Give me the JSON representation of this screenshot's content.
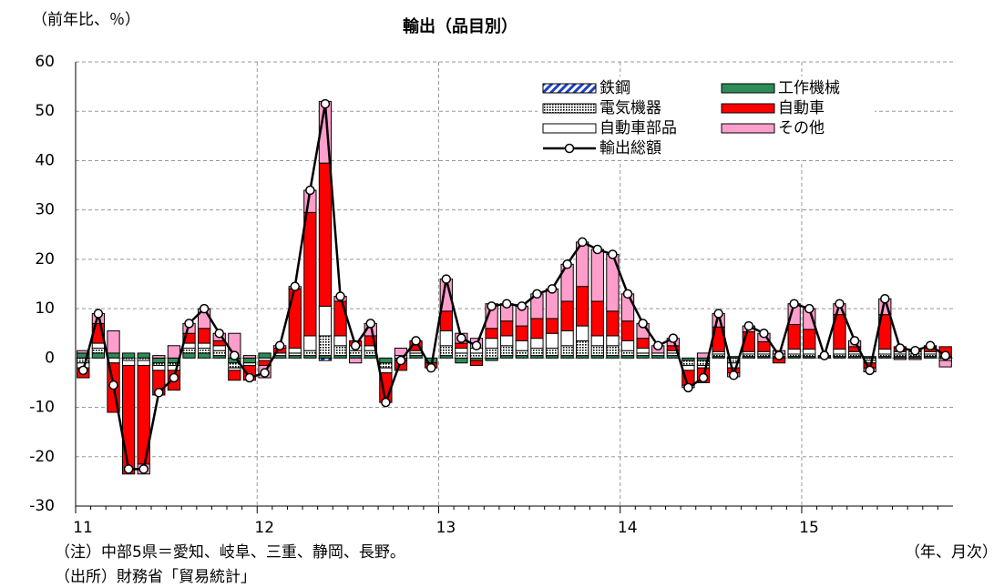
{
  "chart_data": {
    "type": "stacked_bar_line",
    "title": "輸出（品目別）",
    "y_label": "（前年比、％）",
    "x_label": "（年、月次）",
    "notes": [
      "（注）中部5県＝愛知、岐阜、三重、静岡、長野。",
      "（出所）財務省「貿易統計」"
    ],
    "categories": [
      "11",
      null,
      null,
      null,
      null,
      null,
      null,
      null,
      null,
      null,
      null,
      null,
      "12",
      null,
      null,
      null,
      null,
      null,
      null,
      null,
      null,
      null,
      null,
      null,
      "13",
      null,
      null,
      null,
      null,
      null,
      null,
      null,
      null,
      null,
      null,
      null,
      "14",
      null,
      null,
      null,
      null,
      null,
      null,
      null,
      null,
      null,
      null,
      null,
      "15",
      null,
      null,
      null,
      null,
      null,
      null,
      null,
      null,
      null
    ],
    "ylim": [
      -30,
      60
    ],
    "yticks": [
      -30,
      -20,
      -10,
      0,
      10,
      20,
      30,
      40,
      50,
      60
    ],
    "grid": true,
    "series": [
      {
        "name": "鉄鋼",
        "color": "#1f3fbf",
        "pattern": "hatch",
        "values": [
          0,
          0,
          0,
          0,
          0,
          0,
          0,
          0,
          0,
          0,
          0,
          0,
          0,
          0,
          0,
          0,
          -0.5,
          0,
          0,
          0,
          0,
          0,
          0,
          0,
          0,
          0,
          0,
          0,
          0,
          0,
          0,
          0,
          0,
          0,
          0,
          0,
          0,
          0,
          0,
          0,
          0,
          0,
          0,
          0,
          0,
          0,
          0,
          0,
          0,
          0,
          0,
          0,
          0,
          0,
          0,
          0,
          0,
          0
        ]
      },
      {
        "name": "工作機械",
        "color": "#2e8b57",
        "values": [
          1,
          1,
          1,
          1,
          1,
          -1,
          -1,
          1,
          1,
          0.5,
          -1,
          -1,
          1,
          0.5,
          0.5,
          0.5,
          0.5,
          0.5,
          0.5,
          0.5,
          -1,
          -0.5,
          0.5,
          -1,
          0.5,
          -1,
          -0.5,
          -0.5,
          0.5,
          0.5,
          0.5,
          0.5,
          0.5,
          0.5,
          0.5,
          0.5,
          0.5,
          0.5,
          0.5,
          0.5,
          -0.5,
          -0.5,
          0.3,
          0.3,
          0.3,
          0.3,
          0.3,
          0.3,
          0.3,
          0.3,
          0.3,
          0.3,
          0.3,
          0.3,
          0.3,
          0.3,
          0.3,
          0.3
        ]
      },
      {
        "name": "電気機器",
        "color": "#000000",
        "pattern": "dots",
        "values": [
          -1,
          1,
          0,
          -0.5,
          -0.5,
          -0.5,
          -0.5,
          1,
          1,
          1,
          -1,
          0,
          0,
          0,
          0.5,
          1,
          4,
          2,
          1,
          1,
          -1,
          0,
          0.5,
          0,
          2,
          1,
          1,
          2,
          2,
          1,
          1.5,
          1.5,
          2,
          3,
          2,
          2,
          1,
          0.5,
          0,
          0.5,
          -1,
          -1,
          0.5,
          -1,
          0.5,
          0.5,
          0,
          0.5,
          0.5,
          0,
          0.5,
          0.5,
          -0.5,
          0.5,
          0.5,
          0.5,
          0.5,
          -0.5
        ]
      },
      {
        "name": "自動車部品",
        "color": "#ffffff",
        "values": [
          -1,
          1,
          -1,
          -1,
          -1,
          -1,
          -1,
          1,
          1,
          1,
          -0.5,
          -0.5,
          -0.5,
          0.5,
          1,
          3,
          6,
          2,
          1,
          1,
          -1,
          0.5,
          0.5,
          0,
          3,
          1,
          1,
          2,
          2,
          2,
          2,
          3,
          3,
          3,
          2,
          2,
          2,
          1,
          0.5,
          0.5,
          -1,
          -0.5,
          0.5,
          -1,
          0.5,
          0.5,
          0.5,
          1,
          1,
          0,
          1,
          0.5,
          -0.5,
          1,
          0.5,
          0.5,
          0.5,
          0
        ]
      },
      {
        "name": "自動車",
        "color": "#ff0000",
        "values": [
          -2,
          4,
          -10,
          -22,
          -20,
          -5,
          -4,
          2,
          3,
          1,
          -2,
          -3,
          -1,
          1,
          12,
          25,
          29,
          7,
          1,
          2,
          -6,
          -2,
          2,
          -1,
          4,
          1,
          -1,
          2,
          3,
          3,
          4,
          3,
          6,
          8,
          7,
          5,
          4,
          2,
          0,
          1,
          -3,
          -3,
          5,
          -1,
          4,
          2,
          -1,
          5,
          4,
          0,
          7,
          1,
          -1,
          7,
          1,
          0.5,
          1,
          2
        ]
      },
      {
        "name": "その他",
        "color": "#ff9ecb",
        "values": [
          0.5,
          2,
          4.5,
          0,
          -2,
          0.5,
          2.5,
          2,
          4,
          1.5,
          5,
          0.5,
          -2.5,
          0.5,
          0.5,
          4.5,
          12.5,
          1,
          -1,
          2.5,
          0,
          1.5,
          0,
          0,
          6.5,
          2,
          2,
          5,
          3.5,
          4,
          5,
          6,
          7.5,
          9,
          10.5,
          11.5,
          5.5,
          3,
          1.5,
          1.5,
          -0.5,
          1,
          2.7,
          -0.8,
          1.2,
          1.7,
          0.7,
          4.2,
          4.2,
          0.2,
          2.2,
          1.2,
          -0.8,
          3.2,
          -0.3,
          -0.3,
          0.2,
          -1.3
        ]
      }
    ],
    "line": {
      "name": "輸出総額",
      "color": "#000000",
      "values": [
        -2.5,
        9,
        -5.5,
        -22.5,
        -22.5,
        -7,
        -4,
        7,
        10,
        5,
        0.5,
        -4,
        -3,
        2.5,
        14.5,
        34,
        51.5,
        12.5,
        2.5,
        7,
        -9,
        -0.5,
        3.5,
        -2,
        16,
        4,
        2.5,
        10.5,
        11,
        10.5,
        13,
        14,
        19,
        23.5,
        22,
        21,
        13,
        7,
        2.5,
        4,
        -6,
        -4,
        9,
        -3.5,
        6.5,
        5,
        0.5,
        11,
        10,
        0.5,
        11,
        3.5,
        -2.5,
        12,
        2,
        1.5,
        2.5,
        0.5
      ]
    }
  }
}
